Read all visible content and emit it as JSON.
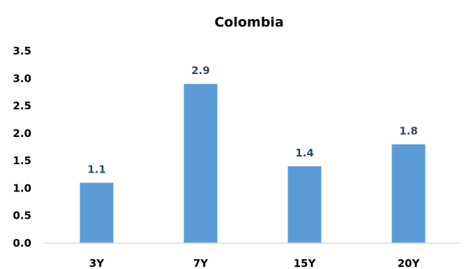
{
  "chart_data": {
    "type": "bar",
    "title": "Colombia",
    "categories": [
      "3Y",
      "7Y",
      "15Y",
      "20Y"
    ],
    "values": [
      1.1,
      2.9,
      1.4,
      1.8
    ],
    "data_labels": [
      "1.1",
      "2.9",
      "1.4",
      "1.8"
    ],
    "y_ticks": [
      "0.0",
      "0.5",
      "1.0",
      "1.5",
      "2.0",
      "2.5",
      "3.0",
      "3.5"
    ],
    "ylim": [
      0,
      3.5
    ],
    "xlabel": "",
    "ylabel": "",
    "grid": false,
    "legend": "none"
  },
  "colors": {
    "bar": "#5B9BD5",
    "data_label": "#2E4B6E",
    "axis": "#D9D9D9",
    "text": "#000000"
  }
}
